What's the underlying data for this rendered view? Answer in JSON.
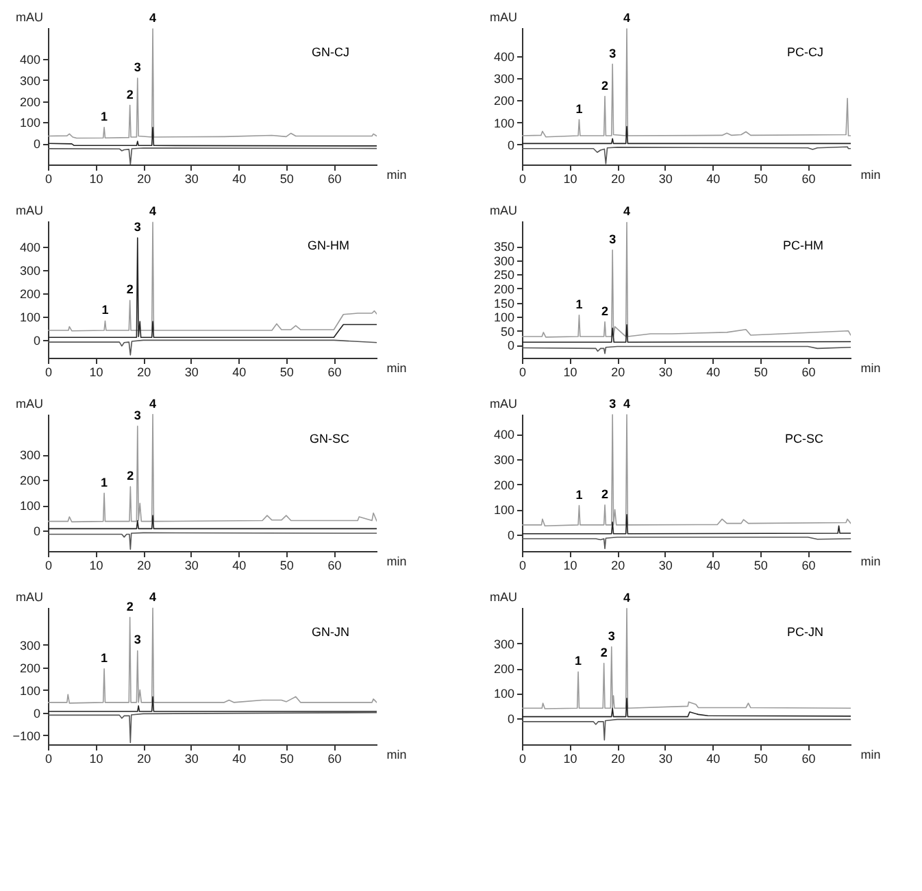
{
  "chart_data": [
    {
      "type": "line",
      "title": "GN-CJ",
      "xlabel": "min",
      "ylabel": "mAU",
      "xlim": [
        0,
        69
      ],
      "xticks": [
        0,
        10,
        20,
        30,
        40,
        50,
        60
      ],
      "ylim": [
        -100,
        550
      ],
      "yticks": [
        0,
        100,
        200,
        300,
        400
      ],
      "grid": false,
      "series": [
        {
          "color": "#9a9a9a",
          "x": [
            0,
            4,
            4.5,
            5.2,
            6,
            11.6,
            11.8,
            12,
            17,
            17.2,
            17.4,
            18.6,
            18.8,
            19,
            21.8,
            22,
            22.2,
            37,
            47,
            50,
            51,
            52,
            68,
            68.3,
            69
          ],
          "values": [
            35,
            36,
            45,
            30,
            25,
            26,
            76,
            26,
            28,
            181,
            30,
            30,
            309,
            35,
            30,
            543,
            30,
            32,
            38,
            32,
            48,
            35,
            35,
            45,
            35
          ]
        },
        {
          "color": "#222222",
          "x": [
            0,
            5,
            5.5,
            18.6,
            18.8,
            19,
            21.8,
            22,
            22.2,
            69
          ],
          "values": [
            0,
            -2,
            -10,
            -10,
            10,
            -10,
            -10,
            76,
            -10,
            -12
          ]
        },
        {
          "color": "#555555",
          "x": [
            0,
            15,
            15.5,
            16,
            17,
            17.3,
            17.6,
            20,
            69
          ],
          "values": [
            -25,
            -26,
            -35,
            -30,
            -28,
            -100,
            -25,
            -22,
            -24
          ]
        }
      ],
      "annotations": [
        {
          "text": "1",
          "x": 11.8,
          "y": 76
        },
        {
          "text": "2",
          "x": 17.2,
          "y": 181
        },
        {
          "text": "3",
          "x": 18.8,
          "y": 309
        },
        {
          "text": "4",
          "x": 22,
          "y": 543
        }
      ]
    },
    {
      "type": "line",
      "title": "PC-CJ",
      "xlabel": "min",
      "ylabel": "mAU",
      "xlim": [
        0,
        69
      ],
      "xticks": [
        0,
        10,
        20,
        30,
        40,
        50,
        60
      ],
      "ylim": [
        -90,
        530
      ],
      "yticks": [
        0,
        100,
        200,
        300,
        400
      ],
      "grid": false,
      "series": [
        {
          "color": "#9a9a9a",
          "x": [
            0,
            4,
            4.3,
            5,
            11.8,
            12,
            12.2,
            17.2,
            17.4,
            17.6,
            18.8,
            19,
            19.2,
            21.8,
            22,
            22.2,
            42,
            43,
            44,
            46,
            47,
            48,
            68,
            68.3,
            68.5,
            69
          ],
          "values": [
            40,
            42,
            60,
            35,
            40,
            113,
            40,
            40,
            218,
            40,
            40,
            364,
            45,
            40,
            524,
            40,
            42,
            52,
            42,
            45,
            58,
            42,
            45,
            209,
            40,
            40
          ]
        },
        {
          "color": "#222222",
          "x": [
            0,
            18.8,
            19,
            19.2,
            21.8,
            22,
            22.2,
            69
          ],
          "values": [
            5,
            5,
            27,
            5,
            5,
            82,
            5,
            5
          ]
        },
        {
          "color": "#555555",
          "x": [
            0,
            15,
            15.8,
            16.5,
            17.3,
            17.6,
            17.9,
            20,
            60,
            61,
            62,
            68.3,
            68.5,
            69
          ],
          "values": [
            -18,
            -18,
            -35,
            -25,
            -20,
            -87,
            -15,
            -12,
            -15,
            -22,
            -15,
            -10,
            -18,
            -18
          ]
        }
      ],
      "annotations": [
        {
          "text": "1",
          "x": 12,
          "y": 113
        },
        {
          "text": "2",
          "x": 17.4,
          "y": 218
        },
        {
          "text": "3",
          "x": 19,
          "y": 364
        },
        {
          "text": "4",
          "x": 22,
          "y": 524
        }
      ]
    },
    {
      "type": "line",
      "title": "GN-HM",
      "xlabel": "min",
      "ylabel": "mAU",
      "xlim": [
        0,
        69
      ],
      "xticks": [
        0,
        10,
        20,
        30,
        40,
        50,
        60
      ],
      "ylim": [
        -75,
        510
      ],
      "yticks": [
        0,
        100,
        200,
        300,
        400
      ],
      "grid": false,
      "series": [
        {
          "color": "#9a9a9a",
          "x": [
            0,
            4.3,
            4.5,
            5,
            11.8,
            12,
            12.2,
            17,
            17.2,
            17.4,
            21.8,
            22,
            22.2,
            47,
            48,
            49,
            51,
            52,
            53,
            60,
            62,
            65,
            68,
            68.5,
            69
          ],
          "values": [
            42,
            42,
            58,
            40,
            42,
            82,
            42,
            42,
            170,
            42,
            42,
            503,
            42,
            42,
            70,
            45,
            45,
            62,
            45,
            45,
            110,
            115,
            115,
            125,
            112
          ]
        },
        {
          "color": "#222222",
          "x": [
            0,
            18.6,
            18.8,
            19,
            19.3,
            19.5,
            21.8,
            22,
            22.2,
            60,
            61,
            62,
            69
          ],
          "values": [
            12,
            12,
            437,
            15,
            80,
            12,
            12,
            80,
            12,
            12,
            40,
            67,
            67
          ]
        },
        {
          "color": "#555555",
          "x": [
            0,
            15,
            15.5,
            16,
            17,
            17.3,
            17.6,
            20,
            60,
            69
          ],
          "values": [
            -8,
            -8,
            -25,
            -10,
            -8,
            -63,
            -5,
            0,
            0,
            -10
          ]
        }
      ],
      "annotations": [
        {
          "text": "1",
          "x": 12,
          "y": 82
        },
        {
          "text": "2",
          "x": 17.2,
          "y": 170
        },
        {
          "text": "3",
          "x": 18.8,
          "y": 437
        },
        {
          "text": "4",
          "x": 22,
          "y": 503
        }
      ]
    },
    {
      "type": "line",
      "title": "PC-HM",
      "xlabel": "min",
      "ylabel": "mAU",
      "xlim": [
        0,
        69
      ],
      "xticks": [
        0,
        10,
        20,
        30,
        40,
        50,
        60
      ],
      "ylim": [
        -45,
        440
      ],
      "yticks": [
        0,
        50,
        100,
        150,
        200,
        250,
        300,
        350
      ],
      "grid": false,
      "series": [
        {
          "color": "#9a9a9a",
          "x": [
            0,
            4.2,
            4.5,
            5,
            11.8,
            12,
            12.2,
            17.2,
            17.4,
            17.6,
            18.8,
            19,
            19.2,
            19.5,
            21.8,
            22,
            22.2,
            27,
            31.5,
            43,
            47,
            48,
            68.5,
            69
          ],
          "values": [
            30,
            30,
            45,
            28,
            30,
            106,
            30,
            30,
            82,
            30,
            30,
            336,
            30,
            65,
            30,
            434,
            30,
            40,
            40,
            45,
            55,
            35,
            50,
            35
          ]
        },
        {
          "color": "#222222",
          "x": [
            0,
            18.8,
            19,
            19.3,
            21.8,
            22,
            22.2,
            69
          ],
          "values": [
            10,
            10,
            60,
            10,
            10,
            72,
            10,
            12
          ]
        },
        {
          "color": "#555555",
          "x": [
            0,
            15.5,
            15.9,
            16.5,
            17.2,
            17.4,
            17.6,
            20,
            60,
            62,
            69
          ],
          "values": [
            -10,
            -12,
            -22,
            -12,
            -12,
            -30,
            -8,
            -5,
            -5,
            -12,
            -8
          ]
        }
      ],
      "annotations": [
        {
          "text": "1",
          "x": 12,
          "y": 106
        },
        {
          "text": "2",
          "x": 17.4,
          "y": 82
        },
        {
          "text": "3",
          "x": 19,
          "y": 336
        },
        {
          "text": "4",
          "x": 22,
          "y": 434
        }
      ]
    },
    {
      "type": "line",
      "title": "GN-SC",
      "xlabel": "min",
      "ylabel": "mAU",
      "xlim": [
        0,
        69
      ],
      "xticks": [
        0,
        10,
        20,
        30,
        40,
        50,
        60
      ],
      "ylim": [
        -80,
        460
      ],
      "yticks": [
        0,
        100,
        200,
        300
      ],
      "grid": false,
      "series": [
        {
          "color": "#9a9a9a",
          "x": [
            0,
            4.2,
            4.5,
            5,
            11.6,
            11.8,
            12,
            17.1,
            17.3,
            17.5,
            18.6,
            18.8,
            19,
            19.3,
            19.6,
            21.8,
            22,
            22.2,
            45,
            46,
            47,
            49,
            50,
            51,
            65,
            65.3,
            68,
            68.3,
            69
          ],
          "values": [
            37,
            37,
            55,
            35,
            37,
            148,
            37,
            37,
            174,
            37,
            37,
            412,
            40,
            108,
            37,
            37,
            458,
            37,
            40,
            60,
            42,
            42,
            60,
            40,
            40,
            55,
            40,
            70,
            38
          ]
        },
        {
          "color": "#222222",
          "x": [
            0,
            18.6,
            18.8,
            19,
            21.8,
            22,
            22.2,
            69
          ],
          "values": [
            8,
            8,
            40,
            8,
            8,
            60,
            8,
            8
          ]
        },
        {
          "color": "#555555",
          "x": [
            0,
            15.5,
            16,
            16.5,
            17.1,
            17.3,
            17.5,
            20,
            69
          ],
          "values": [
            -14,
            -14,
            -25,
            -14,
            -14,
            -73,
            -10,
            -8,
            -10
          ]
        }
      ],
      "annotations": [
        {
          "text": "1",
          "x": 11.8,
          "y": 148
        },
        {
          "text": "2",
          "x": 17.3,
          "y": 174
        },
        {
          "text": "3",
          "x": 18.8,
          "y": 412
        },
        {
          "text": "4",
          "x": 22,
          "y": 458
        }
      ]
    },
    {
      "type": "line",
      "title": "PC-SC",
      "xlabel": "min",
      "ylabel": "mAU",
      "xlim": [
        0,
        69
      ],
      "xticks": [
        0,
        10,
        20,
        30,
        40,
        50,
        60
      ],
      "ylim": [
        -65,
        480
      ],
      "yticks": [
        0,
        100,
        200,
        300,
        400
      ],
      "grid": false,
      "series": [
        {
          "color": "#9a9a9a",
          "x": [
            0,
            4.1,
            4.3,
            4.8,
            11.8,
            12,
            12.2,
            17.2,
            17.4,
            17.6,
            18.8,
            19,
            19.2,
            19.5,
            19.8,
            21.8,
            22,
            22.2,
            41,
            42,
            43,
            46,
            46.5,
            47.5,
            68,
            68.3,
            69
          ],
          "values": [
            39,
            39,
            62,
            35,
            39,
            116,
            39,
            39,
            118,
            39,
            39,
            477,
            39,
            100,
            39,
            39,
            477,
            39,
            40,
            62,
            45,
            45,
            60,
            45,
            48,
            62,
            45
          ]
        },
        {
          "color": "#222222",
          "x": [
            0,
            18.8,
            19,
            19.2,
            21.8,
            22,
            22.2,
            66.3,
            66.5,
            66.7,
            69
          ],
          "values": [
            4,
            4,
            50,
            4,
            4,
            80,
            4,
            6,
            35,
            6,
            6
          ]
        },
        {
          "color": "#555555",
          "x": [
            0,
            15.5,
            16.5,
            17.2,
            17.4,
            17.6,
            20,
            60,
            62,
            69
          ],
          "values": [
            -16,
            -16,
            -20,
            -16,
            -55,
            -14,
            -10,
            -10,
            -18,
            -16
          ]
        }
      ],
      "annotations": [
        {
          "text": "1",
          "x": 12,
          "y": 116
        },
        {
          "text": "2",
          "x": 17.4,
          "y": 118
        },
        {
          "text": "3",
          "x": 19,
          "y": 477
        },
        {
          "text": "4",
          "x": 22,
          "y": 477
        }
      ]
    },
    {
      "type": "line",
      "title": "GN-JN",
      "xlabel": "min",
      "ylabel": "mAU",
      "xlim": [
        0,
        69
      ],
      "xticks": [
        0,
        10,
        20,
        30,
        40,
        50,
        60
      ],
      "ylim": [
        -140,
        465
      ],
      "yticks": [
        -100,
        0,
        100,
        200,
        300
      ],
      "grid": false,
      "series": [
        {
          "color": "#9a9a9a",
          "x": [
            0,
            4,
            4.2,
            4.5,
            11.6,
            11.8,
            12,
            17,
            17.2,
            17.4,
            18.6,
            18.8,
            19,
            19.3,
            19.6,
            21.8,
            22,
            22.2,
            37,
            38,
            39,
            45,
            49,
            50,
            52,
            53,
            68,
            68.3,
            69
          ],
          "values": [
            45,
            45,
            80,
            42,
            45,
            193,
            45,
            45,
            420,
            45,
            45,
            273,
            45,
            100,
            45,
            45,
            461,
            45,
            45,
            55,
            45,
            55,
            55,
            48,
            70,
            45,
            45,
            60,
            45
          ]
        },
        {
          "color": "#222222",
          "x": [
            0,
            18.8,
            19,
            19.2,
            21.8,
            22,
            22.2,
            69
          ],
          "values": [
            5,
            5,
            30,
            5,
            5,
            70,
            5,
            5
          ]
        },
        {
          "color": "#555555",
          "x": [
            0,
            15,
            15.5,
            16,
            17.1,
            17.3,
            17.5,
            20,
            69
          ],
          "values": [
            -11,
            -11,
            -25,
            -14,
            -14,
            -132,
            -10,
            -5,
            0
          ]
        }
      ],
      "annotations": [
        {
          "text": "1",
          "x": 11.8,
          "y": 193
        },
        {
          "text": "2",
          "x": 17.2,
          "y": 420
        },
        {
          "text": "3",
          "x": 18.8,
          "y": 273
        },
        {
          "text": "4",
          "x": 22,
          "y": 461
        }
      ]
    },
    {
      "type": "line",
      "title": "PC-JN",
      "xlabel": "min",
      "ylabel": "mAU",
      "xlim": [
        0,
        69
      ],
      "xticks": [
        0,
        10,
        20,
        30,
        40,
        50,
        60
      ],
      "ylim": [
        -105,
        445
      ],
      "yticks": [
        0,
        100,
        200,
        300
      ],
      "grid": false,
      "series": [
        {
          "color": "#9a9a9a",
          "x": [
            0,
            4.2,
            4.4,
            4.8,
            11.6,
            11.8,
            12,
            17,
            17.2,
            17.4,
            18.6,
            18.8,
            19,
            19.2,
            19.4,
            21.8,
            22,
            22.2,
            34.8,
            35,
            36.5,
            37,
            47,
            47.5,
            48,
            69
          ],
          "values": [
            40,
            40,
            60,
            38,
            40,
            186,
            40,
            40,
            220,
            40,
            40,
            286,
            40,
            90,
            40,
            40,
            440,
            40,
            48,
            65,
            55,
            42,
            42,
            60,
            42,
            40
          ]
        },
        {
          "color": "#222222",
          "x": [
            0,
            18.8,
            19,
            19.2,
            21.8,
            22,
            22.2,
            34.8,
            35.2,
            37,
            39,
            69
          ],
          "values": [
            6,
            6,
            40,
            6,
            6,
            80,
            6,
            6,
            25,
            15,
            10,
            8
          ]
        },
        {
          "color": "#555555",
          "x": [
            0,
            15,
            15.5,
            16,
            17.1,
            17.3,
            17.5,
            20,
            69
          ],
          "values": [
            -14,
            -14,
            -25,
            -14,
            -14,
            -88,
            -10,
            -5,
            -5
          ]
        }
      ],
      "annotations": [
        {
          "text": "1",
          "x": 11.8,
          "y": 186
        },
        {
          "text": "2",
          "x": 17.2,
          "y": 220
        },
        {
          "text": "3",
          "x": 18.8,
          "y": 286
        },
        {
          "text": "4",
          "x": 22,
          "y": 440
        }
      ]
    }
  ]
}
